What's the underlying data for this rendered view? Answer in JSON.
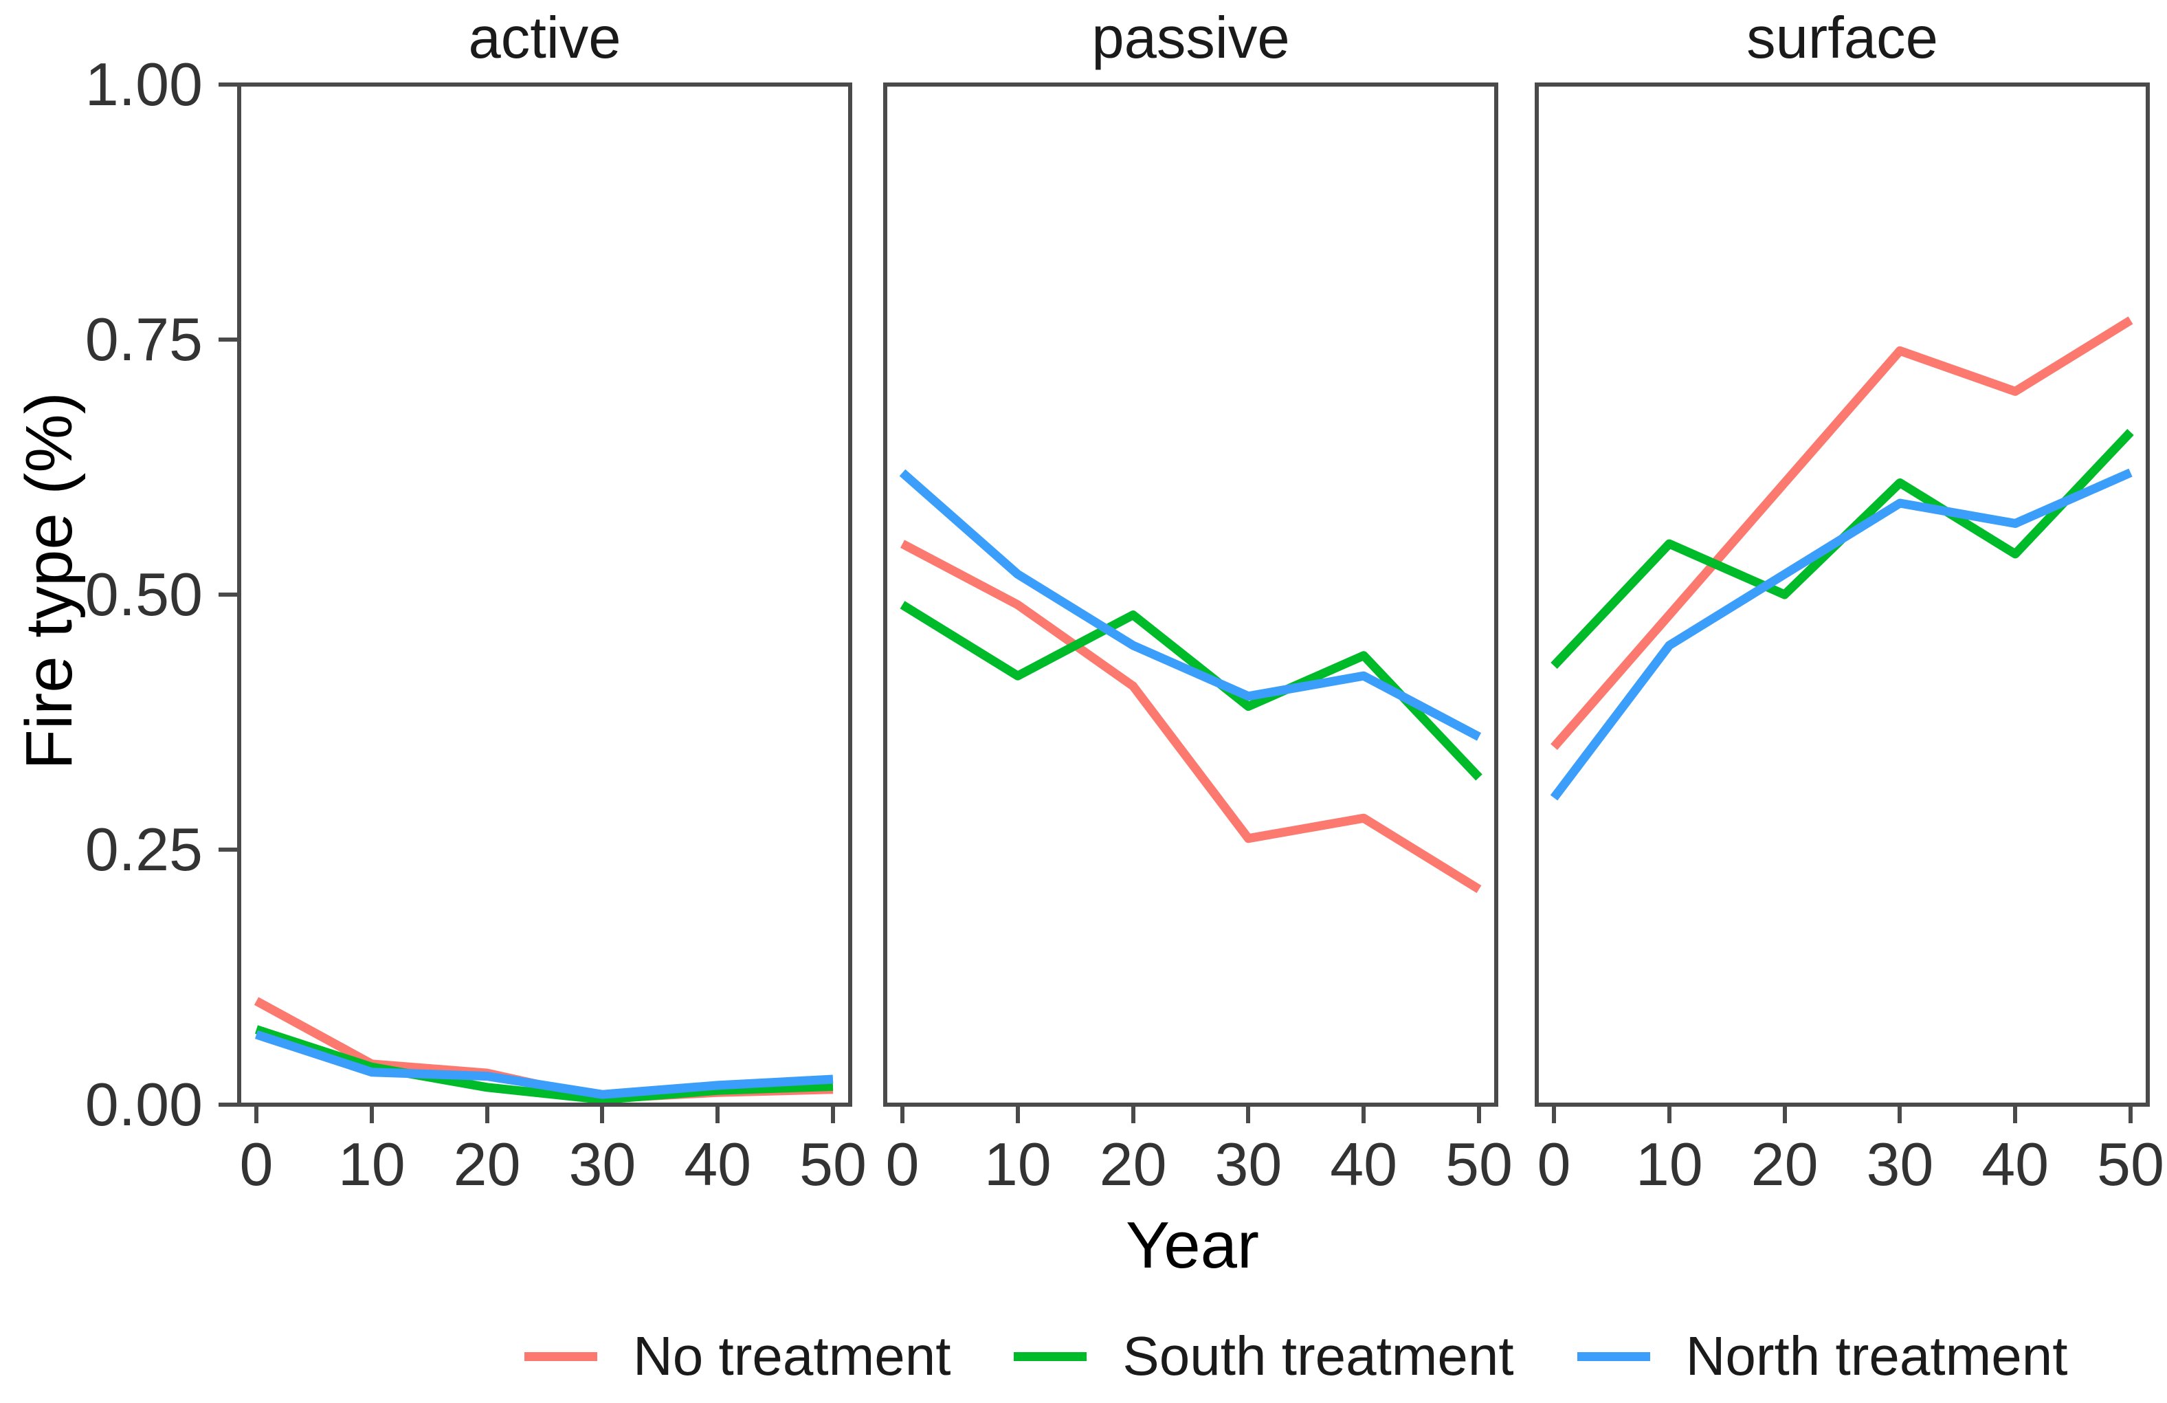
{
  "figure": {
    "background_color": "#FFFFFF",
    "panel_border_color": "#4A4A4A",
    "tick_color": "#4A4A4A",
    "text_color": "#333333"
  },
  "chart_data": {
    "type": "line",
    "title": "",
    "xlabel": "Year",
    "ylabel": "Fire type (%)",
    "x": [
      0,
      10,
      20,
      30,
      40,
      50
    ],
    "x_tick_labels": [
      "0",
      "10",
      "20",
      "30",
      "40",
      "50"
    ],
    "y_tick_labels": [
      "1.00",
      "0.75",
      "0.50",
      "0.25",
      "0.00"
    ],
    "y_tick_values": [
      1.0,
      0.75,
      0.5,
      0.25,
      0.0
    ],
    "ylim": [
      0,
      1
    ],
    "grid": false,
    "legend_position": "bottom",
    "facets": [
      {
        "label": "active",
        "series": [
          {
            "name": "No treatment",
            "values": [
              0.1,
              0.038,
              0.029,
              0.004,
              0.01,
              0.013
            ]
          },
          {
            "name": "South treatment",
            "values": [
              0.072,
              0.035,
              0.015,
              0.003,
              0.012,
              0.016
            ]
          },
          {
            "name": "North treatment",
            "values": [
              0.067,
              0.03,
              0.026,
              0.008,
              0.017,
              0.023
            ]
          }
        ]
      },
      {
        "label": "passive",
        "series": [
          {
            "name": "No treatment",
            "values": [
              0.55,
              0.49,
              0.41,
              0.26,
              0.28,
              0.21
            ]
          },
          {
            "name": "South treatment",
            "values": [
              0.49,
              0.42,
              0.48,
              0.39,
              0.44,
              0.32
            ]
          },
          {
            "name": "North treatment",
            "values": [
              0.62,
              0.52,
              0.45,
              0.4,
              0.42,
              0.36
            ]
          }
        ]
      },
      {
        "label": "surface",
        "series": [
          {
            "name": "No treatment",
            "values": [
              0.35,
              0.48,
              0.61,
              0.74,
              0.7,
              0.77
            ]
          },
          {
            "name": "South treatment",
            "values": [
              0.43,
              0.55,
              0.5,
              0.61,
              0.54,
              0.66
            ]
          },
          {
            "name": "North treatment",
            "values": [
              0.3,
              0.45,
              0.52,
              0.59,
              0.57,
              0.62
            ]
          }
        ]
      }
    ],
    "legend": [
      {
        "label": "No treatment",
        "color": "#FC796F"
      },
      {
        "label": "South treatment",
        "color": "#00BB29"
      },
      {
        "label": "North treatment",
        "color": "#3B9EFA"
      }
    ]
  }
}
